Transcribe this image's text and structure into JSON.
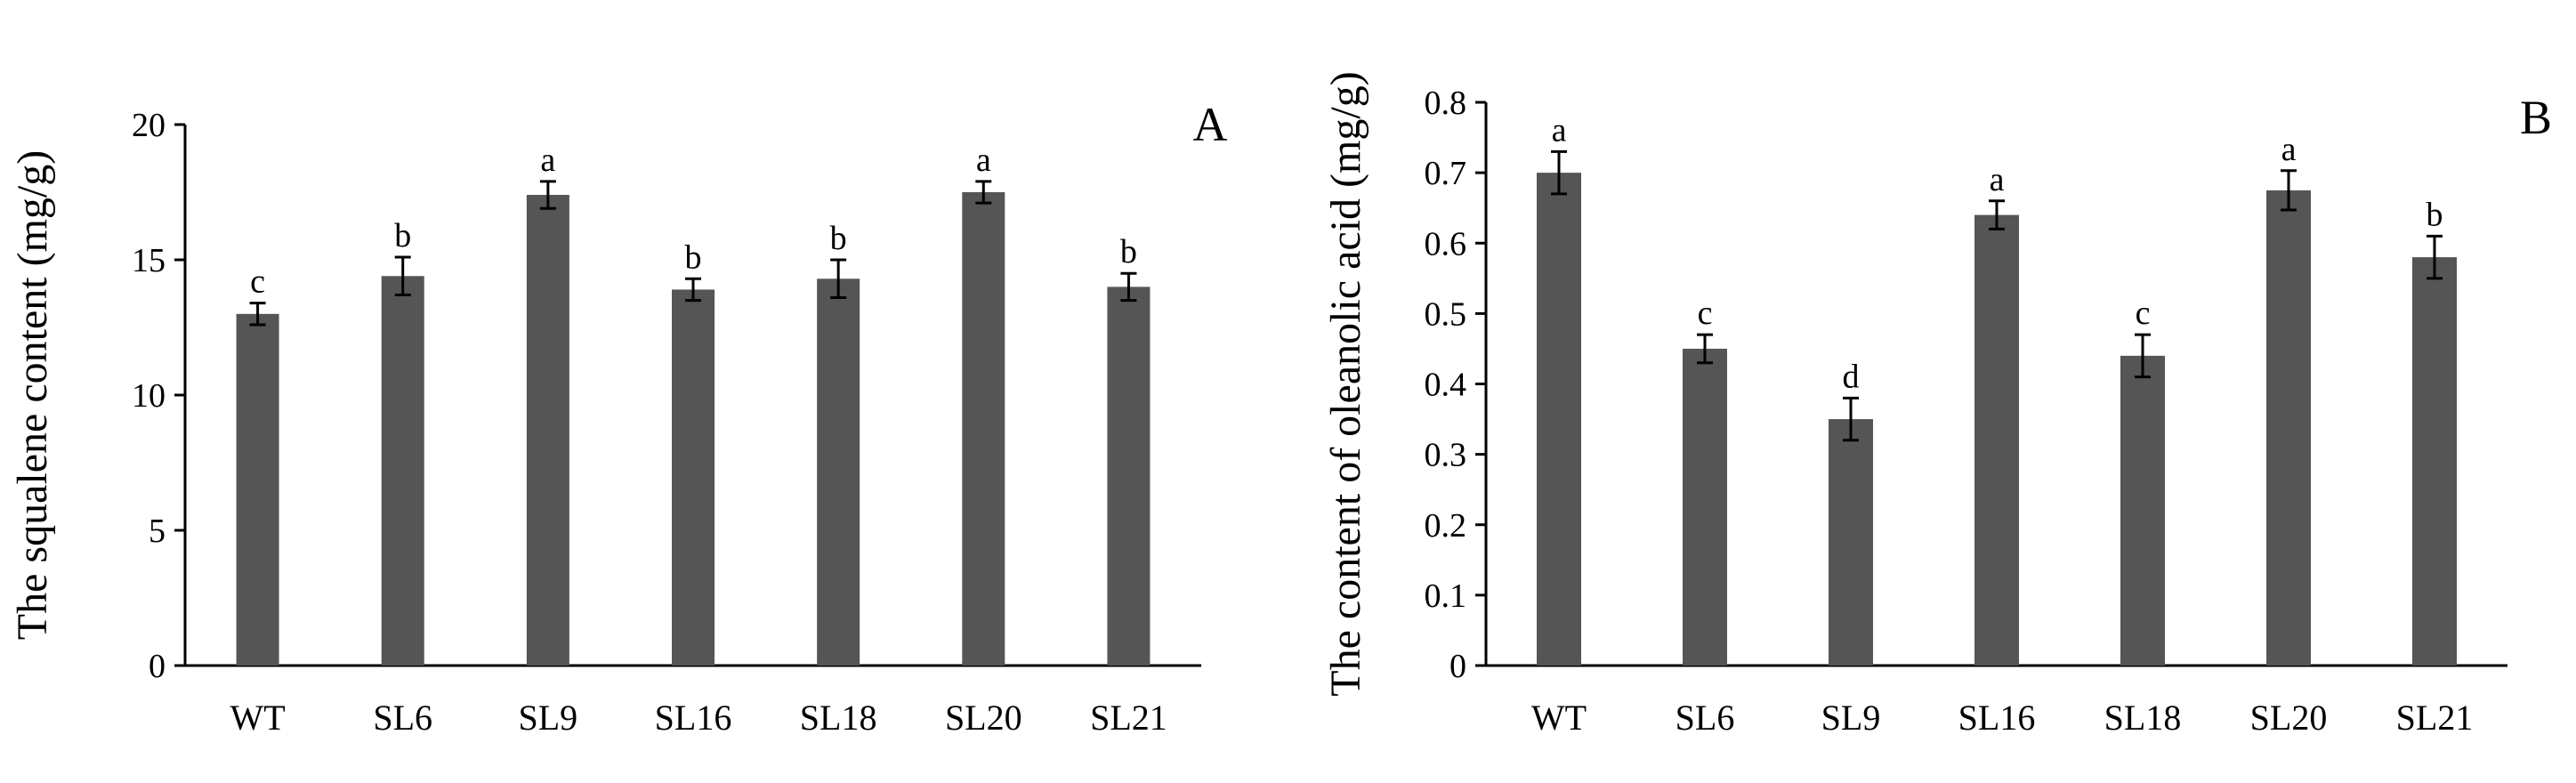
{
  "colors": {
    "bar": "#555555",
    "axis": "#000000",
    "background": "#ffffff"
  },
  "chart_data": [
    {
      "type": "bar",
      "panel_label": "A",
      "title": "",
      "xlabel": "",
      "ylabel": "The squalene content (mg/g)",
      "ylim": [
        0,
        20
      ],
      "yticks": [
        0,
        5,
        10,
        15,
        20
      ],
      "ytick_labels": [
        "0",
        "5",
        "10",
        "15",
        "20"
      ],
      "grid": false,
      "categories": [
        "WT",
        "SL6",
        "SL9",
        "SL16",
        "SL18",
        "SL20",
        "SL21"
      ],
      "values": [
        13.0,
        14.4,
        17.4,
        13.9,
        14.3,
        17.5,
        14.0
      ],
      "errors": [
        0.4,
        0.7,
        0.5,
        0.4,
        0.7,
        0.4,
        0.5
      ],
      "significance": [
        "c",
        "b",
        "a",
        "b",
        "b",
        "a",
        "b"
      ]
    },
    {
      "type": "bar",
      "panel_label": "B",
      "title": "",
      "xlabel": "",
      "ylabel": "The content of oleanolic acid (mg/g)",
      "ylim": [
        0,
        0.8
      ],
      "yticks": [
        0,
        0.1,
        0.2,
        0.3,
        0.4,
        0.5,
        0.6,
        0.7,
        0.8
      ],
      "ytick_labels": [
        "0",
        "0.1",
        "0.2",
        "0.3",
        "0.4",
        "0.5",
        "0.6",
        "0.7",
        "0.8"
      ],
      "grid": false,
      "categories": [
        "WT",
        "SL6",
        "SL9",
        "SL16",
        "SL18",
        "SL20",
        "SL21"
      ],
      "values": [
        0.7,
        0.45,
        0.35,
        0.64,
        0.44,
        0.675,
        0.58
      ],
      "errors": [
        0.03,
        0.02,
        0.03,
        0.02,
        0.03,
        0.028,
        0.03
      ],
      "significance": [
        "a",
        "c",
        "d",
        "a",
        "c",
        "a",
        "b"
      ]
    }
  ]
}
